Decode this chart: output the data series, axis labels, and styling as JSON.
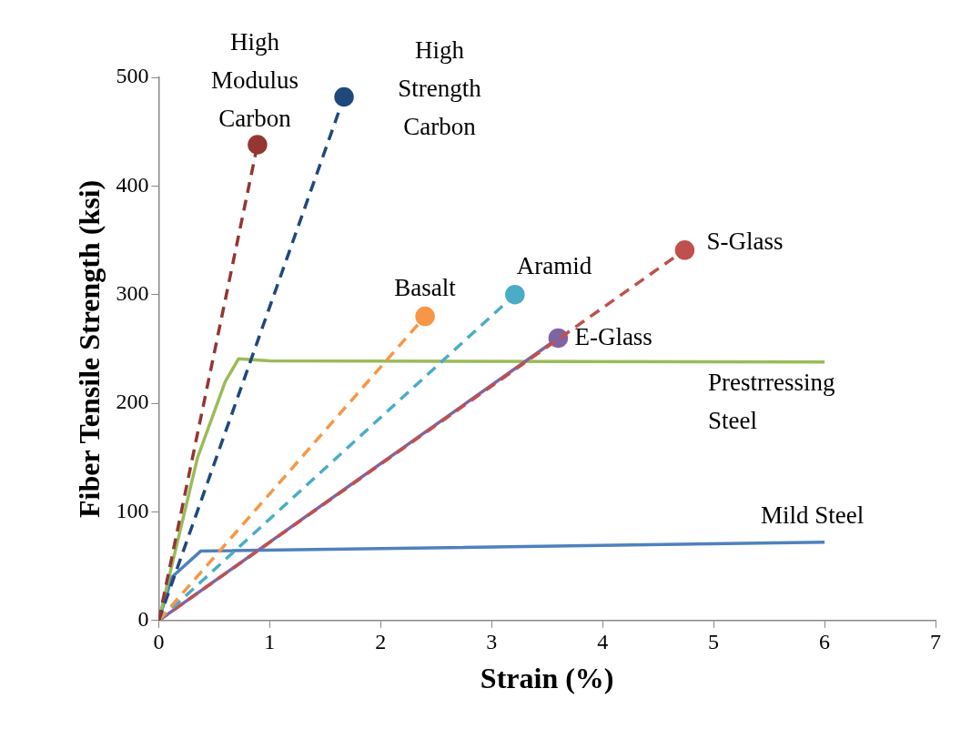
{
  "chart_data": {
    "type": "line",
    "xlabel": "Strain (%)",
    "ylabel": "Fiber Tensile Strength (ksi)",
    "xlim": [
      0,
      7
    ],
    "xticks": [
      0,
      1,
      2,
      3,
      4,
      5,
      6,
      7
    ],
    "ylim": [
      0,
      500
    ],
    "yticks": [
      0,
      100,
      200,
      300,
      400,
      500
    ],
    "grid": false,
    "legend": false,
    "series": [
      {
        "name": "High Modulus Carbon",
        "color": "#943634",
        "x": [
          0,
          0.89
        ],
        "values": [
          0,
          438
        ],
        "line_style": "dashed",
        "marker": "circle"
      },
      {
        "name": "High Strength Carbon",
        "color": "#1f497d",
        "x": [
          0,
          1.67
        ],
        "values": [
          0,
          482
        ],
        "line_style": "dashed",
        "marker": "circle"
      },
      {
        "name": "Basalt",
        "color": "#f79646",
        "x": [
          0,
          2.4
        ],
        "values": [
          0,
          280
        ],
        "line_style": "dashed",
        "marker": "circle"
      },
      {
        "name": "Aramid",
        "color": "#4bacc6",
        "x": [
          0,
          3.21
        ],
        "values": [
          0,
          300
        ],
        "line_style": "dashed",
        "marker": "circle"
      },
      {
        "name": "S-Glass",
        "color": "#c0504d",
        "x": [
          0,
          4.74
        ],
        "values": [
          0,
          341
        ],
        "line_style": "dashed",
        "marker": "circle"
      },
      {
        "name": "E-Glass",
        "color": "#8064a2",
        "x": [
          0,
          3.6
        ],
        "values": [
          0,
          260
        ],
        "line_style": "solid",
        "marker": "circle"
      },
      {
        "name": "Prestrressing Steel",
        "color": "#9bbb59",
        "x": [
          0,
          0.35,
          0.6,
          0.72,
          1.0,
          6
        ],
        "values": [
          0,
          150,
          220,
          241,
          239,
          238
        ],
        "line_style": "solid",
        "marker": "none"
      },
      {
        "name": "Mild Steel",
        "color": "#4f81bd",
        "x": [
          0,
          0.12,
          0.38,
          6
        ],
        "values": [
          0,
          40,
          64,
          72
        ],
        "line_style": "solid",
        "marker": "none"
      }
    ]
  }
}
